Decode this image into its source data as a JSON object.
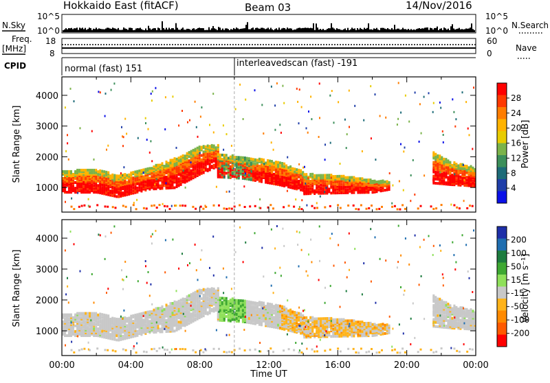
{
  "header": {
    "title": "Hokkaido East (fitACF)",
    "beam": "Beam 03",
    "date": "14/Nov/2016"
  },
  "strip": {
    "nsky_label": "N.Sky",
    "nsky_ticks": [
      "10^5",
      "10^0"
    ],
    "nsearch_label": "N.Search",
    "nsearch_ticks": [
      "10^5",
      "10^0"
    ],
    "freq_label_1": "Freq.",
    "freq_label_2": "[MHz]",
    "freq_ticks": [
      "18",
      "8"
    ],
    "nave_label": "Nave",
    "nave_ticks": [
      "60",
      "0"
    ],
    "cpid_label": "CPID",
    "cpid_1": "normal (fast) 151",
    "cpid_2": "interleavedscan (fast) -191"
  },
  "chart_data": [
    {
      "type": "heatmap",
      "name": "power",
      "ylabel": "Slant Range [km]",
      "yticks": [
        "4000",
        "3000",
        "2000",
        "1000"
      ],
      "ylim": [
        200,
        4600
      ],
      "xlim": [
        0,
        24
      ],
      "colorbar_label": "Power [dB]",
      "colorbar_ticks": [
        "28",
        "24",
        "20",
        "16",
        "12",
        "8",
        "4"
      ],
      "colorbar_colors": [
        "#ff0000",
        "#ff3a00",
        "#ff7d00",
        "#ffb300",
        "#e8cc00",
        "#7bb34a",
        "#3c8f5a",
        "#1d6b78",
        "#1f3ea8",
        "#0a10e8"
      ],
      "bands": [
        {
          "t": [
            0.0,
            2.0,
            3.2,
            5.0,
            6.5,
            8.0,
            9.0
          ],
          "lo": [
            800,
            800,
            650,
            900,
            950,
            1400,
            1650
          ],
          "hi": [
            1500,
            1550,
            1350,
            1600,
            1900,
            2300,
            2350
          ]
        },
        {
          "t": [
            9.0,
            10.5,
            12.5,
            14.0
          ],
          "lo": [
            1300,
            1250,
            1050,
            850
          ],
          "hi": [
            2050,
            1950,
            1800,
            1500
          ]
        },
        {
          "t": [
            14.0,
            16.0,
            18.0,
            19.0
          ],
          "lo": [
            750,
            780,
            800,
            900
          ],
          "hi": [
            1400,
            1350,
            1200,
            1150
          ]
        },
        {
          "t": [
            21.5,
            22.5,
            24.0
          ],
          "lo": [
            1100,
            1050,
            1000
          ],
          "hi": [
            2100,
            1800,
            1600
          ]
        }
      ]
    },
    {
      "type": "heatmap",
      "name": "velocity",
      "ylabel": "Slant Range [km]",
      "xlabel": "Time UT",
      "yticks": [
        "4000",
        "3000",
        "2000",
        "1000"
      ],
      "xticks": [
        "00:00",
        "04:00",
        "08:00",
        "12:00",
        "16:00",
        "20:00",
        "00:00"
      ],
      "ylim": [
        200,
        4600
      ],
      "xlim": [
        0,
        24
      ],
      "colorbar_label": "Velocity [m s⁻¹]",
      "colorbar_ticks": [
        "200",
        "100",
        "50",
        "15",
        "-15",
        "-50",
        "-100",
        "-200"
      ],
      "colorbar_colors": [
        "#1e2fa8",
        "#1f6eb0",
        "#1d7c3f",
        "#3ea832",
        "#8fe05a",
        "#c8c8c8",
        "#ffb31a",
        "#ff8a00",
        "#ff5a00",
        "#ff0000"
      ]
    }
  ]
}
